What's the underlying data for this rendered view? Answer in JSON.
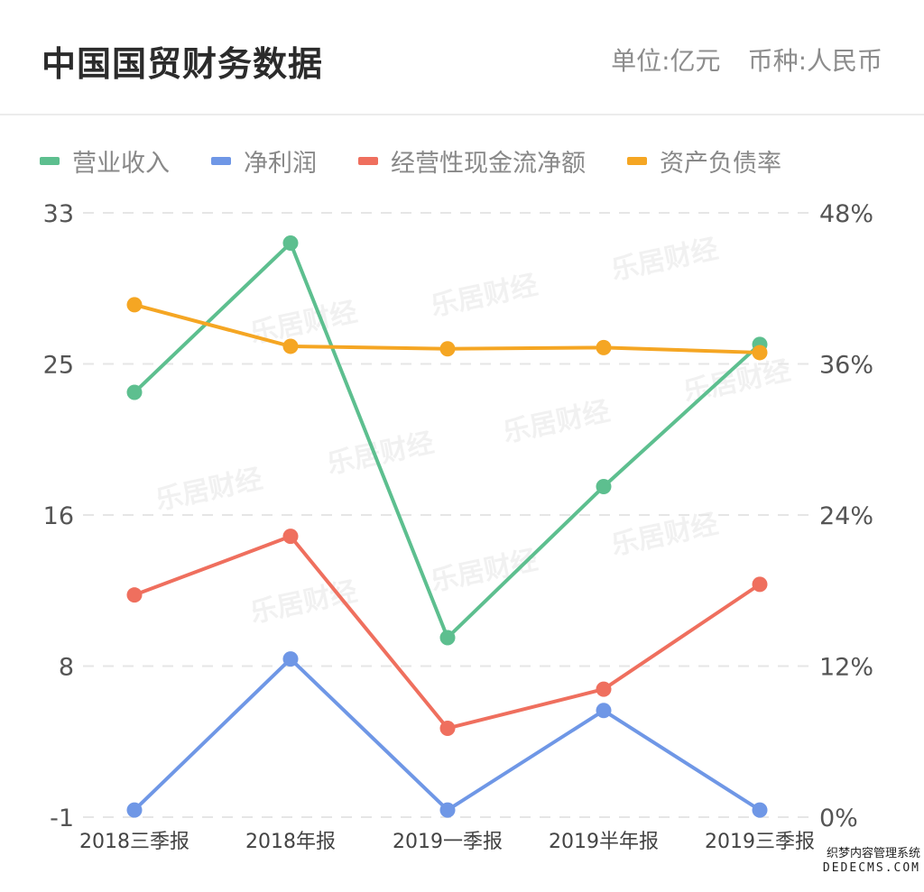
{
  "header": {
    "title": "中国国贸财务数据",
    "unit": "单位:亿元",
    "currency": "币种:人民币"
  },
  "chart_data": {
    "type": "line",
    "categories": [
      "2018三季报",
      "2018年报",
      "2019一季报",
      "2019半年报",
      "2019三季报"
    ],
    "left_axis": {
      "ticks": [
        "33",
        "25",
        "16",
        "8",
        "-1"
      ],
      "ylim": [
        -1,
        33
      ]
    },
    "right_axis": {
      "ticks": [
        "48%",
        "36%",
        "24%",
        "12%",
        "0%"
      ],
      "ylim": [
        0,
        48
      ]
    },
    "grid": true,
    "legend_position": "top-left",
    "series": [
      {
        "name": "营业收入",
        "color": "#5dbf8f",
        "axis": "left",
        "values": [
          22.9,
          31.3,
          9.1,
          17.6,
          25.6
        ]
      },
      {
        "name": "净利润",
        "color": "#6f97e6",
        "axis": "left",
        "values": [
          -0.6,
          7.9,
          -0.6,
          5.0,
          -0.6
        ]
      },
      {
        "name": "经营性现金流净额",
        "color": "#ef6f5e",
        "axis": "left",
        "values": [
          11.5,
          14.8,
          4.0,
          6.2,
          12.1
        ]
      },
      {
        "name": "资产负债率",
        "color": "#f5a623",
        "axis": "right",
        "values": [
          40.7,
          37.4,
          37.2,
          37.3,
          36.9
        ]
      }
    ]
  },
  "watermarks": {
    "text": "乐居财经",
    "corner_line1": "织梦内容管理系统",
    "corner_line2": "DEDECMS.COM"
  }
}
